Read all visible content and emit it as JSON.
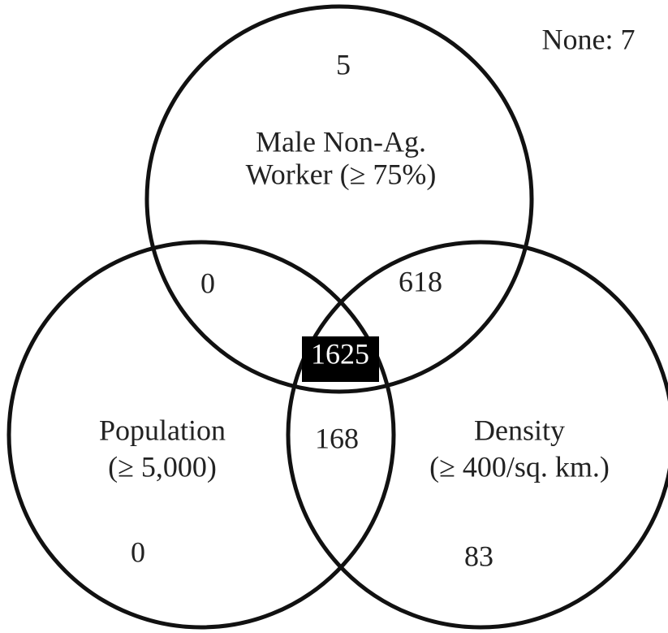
{
  "none": "None: 7",
  "sets": [
    {
      "lines": [
        "Male Non-Ag.",
        "Worker (≥ 75%)"
      ]
    },
    {
      "lines": [
        "Population",
        "(≥ 5,000)"
      ]
    },
    {
      "lines": [
        "Density",
        "(≥ 400/sq. km.)"
      ]
    }
  ],
  "regions": {
    "top_only": 5,
    "top_left": 0,
    "top_right": 618,
    "all": 1625,
    "left_right": 168,
    "left_only": 0,
    "right_only": 83
  }
}
